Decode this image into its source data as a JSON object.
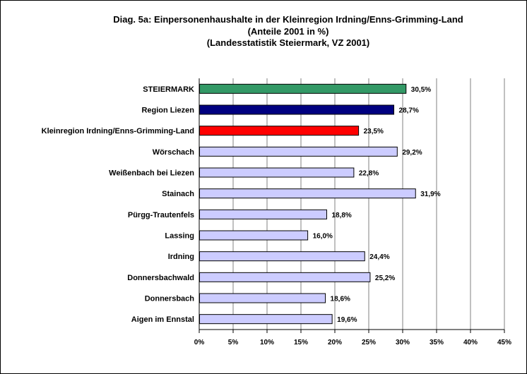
{
  "chart_data": {
    "type": "bar",
    "orientation": "horizontal",
    "title": "Diag. 5a: Einpersonenhaushalte  in der Kleinregion Irdning/Enns-Grimming-Land",
    "subtitle": "(Anteile 2001 in %)",
    "source": "(Landesstatistik  Steiermark,  VZ 2001)",
    "categories": [
      "STEIERMARK",
      "Region Liezen",
      "Kleinregion Irdning/Enns-Grimming-Land",
      "Wörschach",
      "Weißenbach bei Liezen",
      "Stainach",
      "Pürgg-Trautenfels",
      "Lassing",
      "Irdning",
      "Donnersbachwald",
      "Donnersbach",
      "Aigen im Ennstal"
    ],
    "values": [
      30.5,
      28.7,
      23.5,
      29.2,
      22.8,
      31.9,
      18.8,
      16.0,
      24.4,
      25.2,
      18.6,
      19.6
    ],
    "value_labels": [
      "30,5%",
      "28,7%",
      "23,5%",
      "29,2%",
      "22,8%",
      "31,9%",
      "18,8%",
      "16,0%",
      "24,4%",
      "25,2%",
      "18,6%",
      "19,6%"
    ],
    "bar_colors": [
      "#339966",
      "#000080",
      "#ff0000",
      "#ccccff",
      "#ccccff",
      "#ccccff",
      "#ccccff",
      "#ccccff",
      "#ccccff",
      "#ccccff",
      "#ccccff",
      "#ccccff"
    ],
    "xlim": [
      0,
      45
    ],
    "xticks": [
      0,
      5,
      10,
      15,
      20,
      25,
      30,
      35,
      40,
      45
    ],
    "xtick_labels": [
      "0%",
      "5%",
      "10%",
      "15%",
      "20%",
      "25%",
      "30%",
      "35%",
      "40%",
      "45%"
    ],
    "xlabel": "",
    "ylabel": "",
    "grid": "vertical",
    "gridline_color": "#808080",
    "legend": "none"
  }
}
